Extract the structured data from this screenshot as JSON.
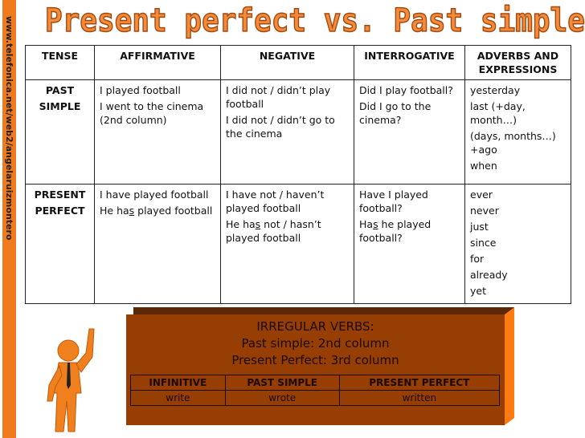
{
  "side_url": "www.telefonica.net/web2/angelaruizmontero",
  "title": "Present perfect vs. Past simple",
  "table": {
    "headers": [
      "TENSE",
      "AFFIRMATIVE",
      "NEGATIVE",
      "INTERROGATIVE",
      "ADVERBS AND EXPRESSIONS"
    ],
    "rows": [
      {
        "tense": [
          "PAST",
          "SIMPLE"
        ],
        "affirmative": [
          "I played football",
          "I went to the cinema (2nd column)"
        ],
        "negative": [
          "I did not / didn’t play football",
          "I did not / didn’t go to the cinema"
        ],
        "interrogative": [
          "Did I play football?",
          "Did I go to the cinema?"
        ],
        "adverbs": [
          "yesterday",
          "last (+day, month…)",
          "(days, months…) +ago",
          "when"
        ]
      },
      {
        "tense": [
          "PRESENT",
          "PERFECT"
        ],
        "affirmative": [
          "I have played football",
          "He ha",
          "s",
          " played football"
        ],
        "negative": [
          "I have not / haven’t played football",
          "He ha",
          "s",
          " not / hasn’t played football"
        ],
        "interrogative": [
          "Have I played football?",
          "Ha",
          "s",
          " he played football?"
        ],
        "adverbs": [
          "ever",
          "never",
          "just",
          "since",
          "for",
          "already",
          "yet"
        ]
      }
    ]
  },
  "irregular": {
    "lines": [
      "IRREGULAR VERBS:",
      "Past simple: 2nd column",
      "Present Perfect: 3rd column"
    ],
    "headers": [
      "INFINITIVE",
      "PAST SIMPLE",
      "PRESENT PERFECT"
    ],
    "values": [
      "write",
      "wrote",
      "written"
    ]
  },
  "colors": {
    "accent": "#f07a1e",
    "box": "#973e05"
  }
}
